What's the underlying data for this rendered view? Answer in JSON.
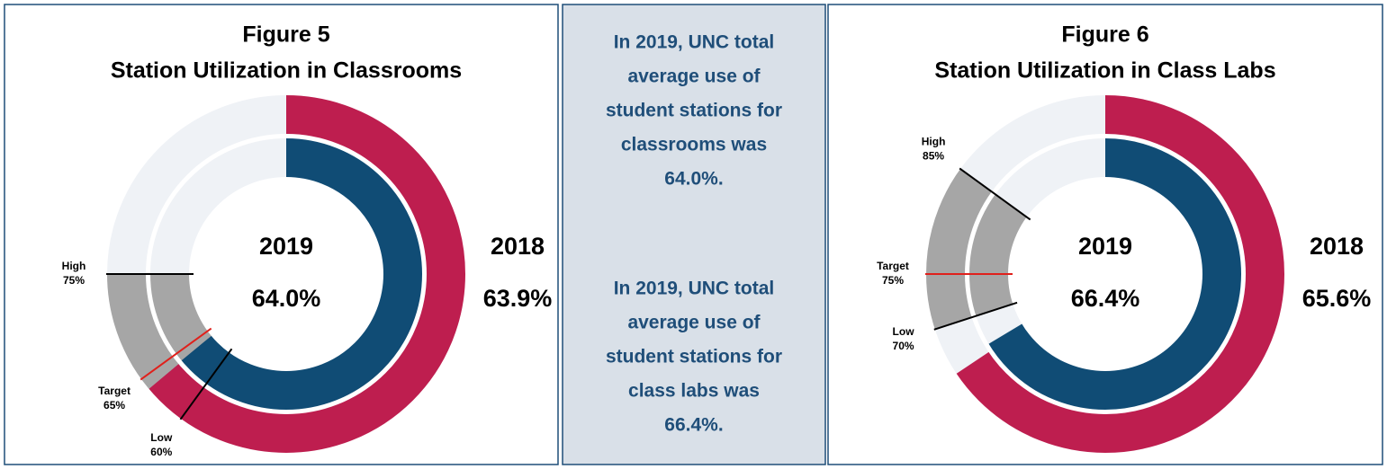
{
  "chart_data": [
    {
      "type": "donut",
      "title": [
        "Figure 5",
        "Station Utilization in Classrooms"
      ],
      "ylim": [
        0,
        100
      ],
      "series": [
        {
          "name": "2018",
          "color": "#be1e4f",
          "values": [
            63.9
          ],
          "value_labels": [
            "63.9%"
          ]
        },
        {
          "name": "2019",
          "color": "#104c75",
          "values": [
            64.0
          ],
          "value_labels": [
            "64.0%"
          ]
        }
      ],
      "markers": [
        {
          "name": "High",
          "value": 75,
          "value_label": "75%",
          "color": "#000000"
        },
        {
          "name": "Target",
          "value": 65,
          "value_label": "65%",
          "color": "#e0201b"
        },
        {
          "name": "Low",
          "value": 60,
          "value_label": "60%",
          "color": "#000000"
        }
      ],
      "band_color": "#a6a6a6",
      "track_color": "#eff2f6"
    },
    {
      "type": "donut",
      "title": [
        "Figure 6",
        "Station Utilization in Class Labs"
      ],
      "ylim": [
        0,
        100
      ],
      "series": [
        {
          "name": "2018",
          "color": "#be1e4f",
          "values": [
            65.6
          ],
          "value_labels": [
            "65.6%"
          ]
        },
        {
          "name": "2019",
          "color": "#104c75",
          "values": [
            66.4
          ],
          "value_labels": [
            "66.4%"
          ]
        }
      ],
      "markers": [
        {
          "name": "High",
          "value": 85,
          "value_label": "85%",
          "color": "#000000"
        },
        {
          "name": "Target",
          "value": 75,
          "value_label": "75%",
          "color": "#e0201b"
        },
        {
          "name": "Low",
          "value": 70,
          "value_label": "70%",
          "color": "#000000"
        }
      ],
      "band_color": "#a6a6a6",
      "track_color": "#eff2f6"
    }
  ],
  "note": {
    "paragraphs": [
      [
        "In 2019, UNC total",
        "average use of",
        "student stations for",
        "classrooms was",
        "64.0%."
      ],
      [
        "In 2019, UNC total",
        "average use of",
        "student stations for",
        "class labs was",
        "66.4%."
      ]
    ]
  }
}
